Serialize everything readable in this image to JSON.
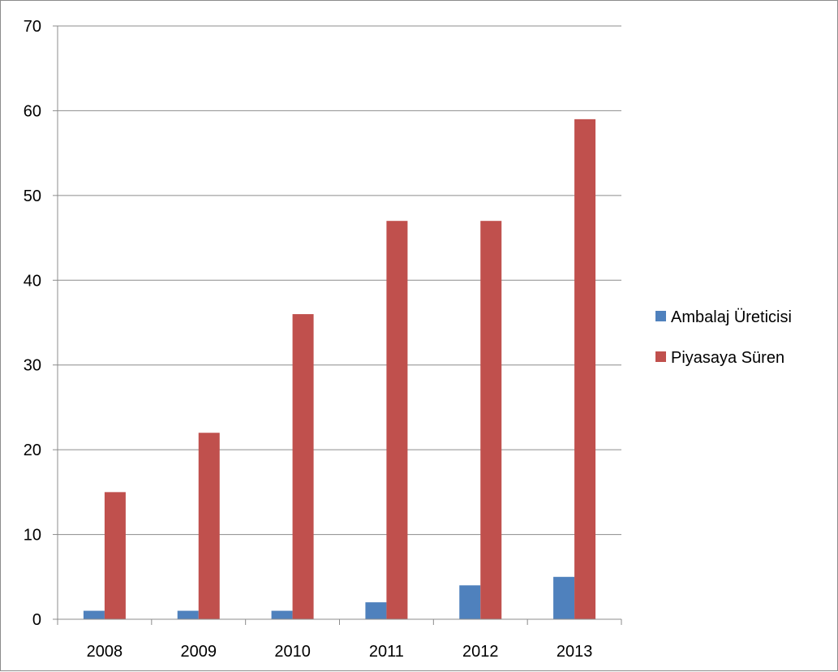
{
  "chart_data": {
    "type": "bar",
    "title": "",
    "xlabel": "",
    "ylabel": "",
    "categories": [
      "2008",
      "2009",
      "2010",
      "2011",
      "2012",
      "2013"
    ],
    "series": [
      {
        "name": "Ambalaj Üreticisi",
        "color": "#4f81bd",
        "values": [
          1,
          1,
          1,
          2,
          4,
          5
        ]
      },
      {
        "name": "Piyasaya Süren",
        "color": "#c0504d",
        "values": [
          15,
          22,
          36,
          47,
          47,
          59
        ]
      }
    ],
    "ylim": [
      0,
      70
    ],
    "yticks": [
      "0",
      "10",
      "20",
      "30",
      "40",
      "50",
      "60",
      "70"
    ],
    "grid": true,
    "legend_position": "right"
  }
}
